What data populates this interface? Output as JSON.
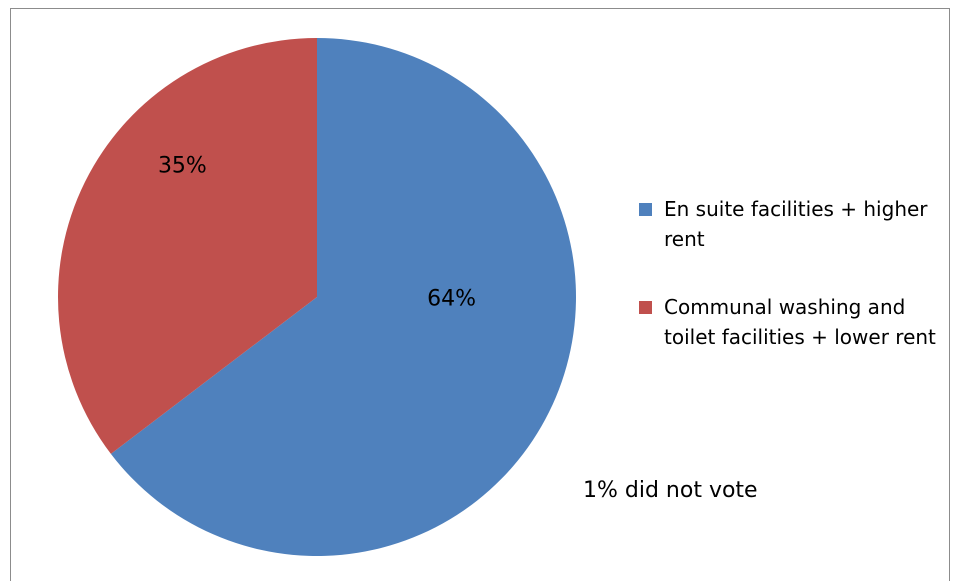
{
  "chart_data": {
    "type": "pie",
    "slices": [
      {
        "label": " En suite facilities + higher rent",
        "value": 64,
        "color": "#4F81BD",
        "data_label": "64%"
      },
      {
        "label": "Communal washing and toilet facilities + lower rent",
        "value": 35,
        "color": "#C0504D",
        "data_label": "35%"
      }
    ],
    "start_angle_deg": 0,
    "direction": "clockwise",
    "legend_position": "right",
    "annotation": "1% did not vote"
  }
}
